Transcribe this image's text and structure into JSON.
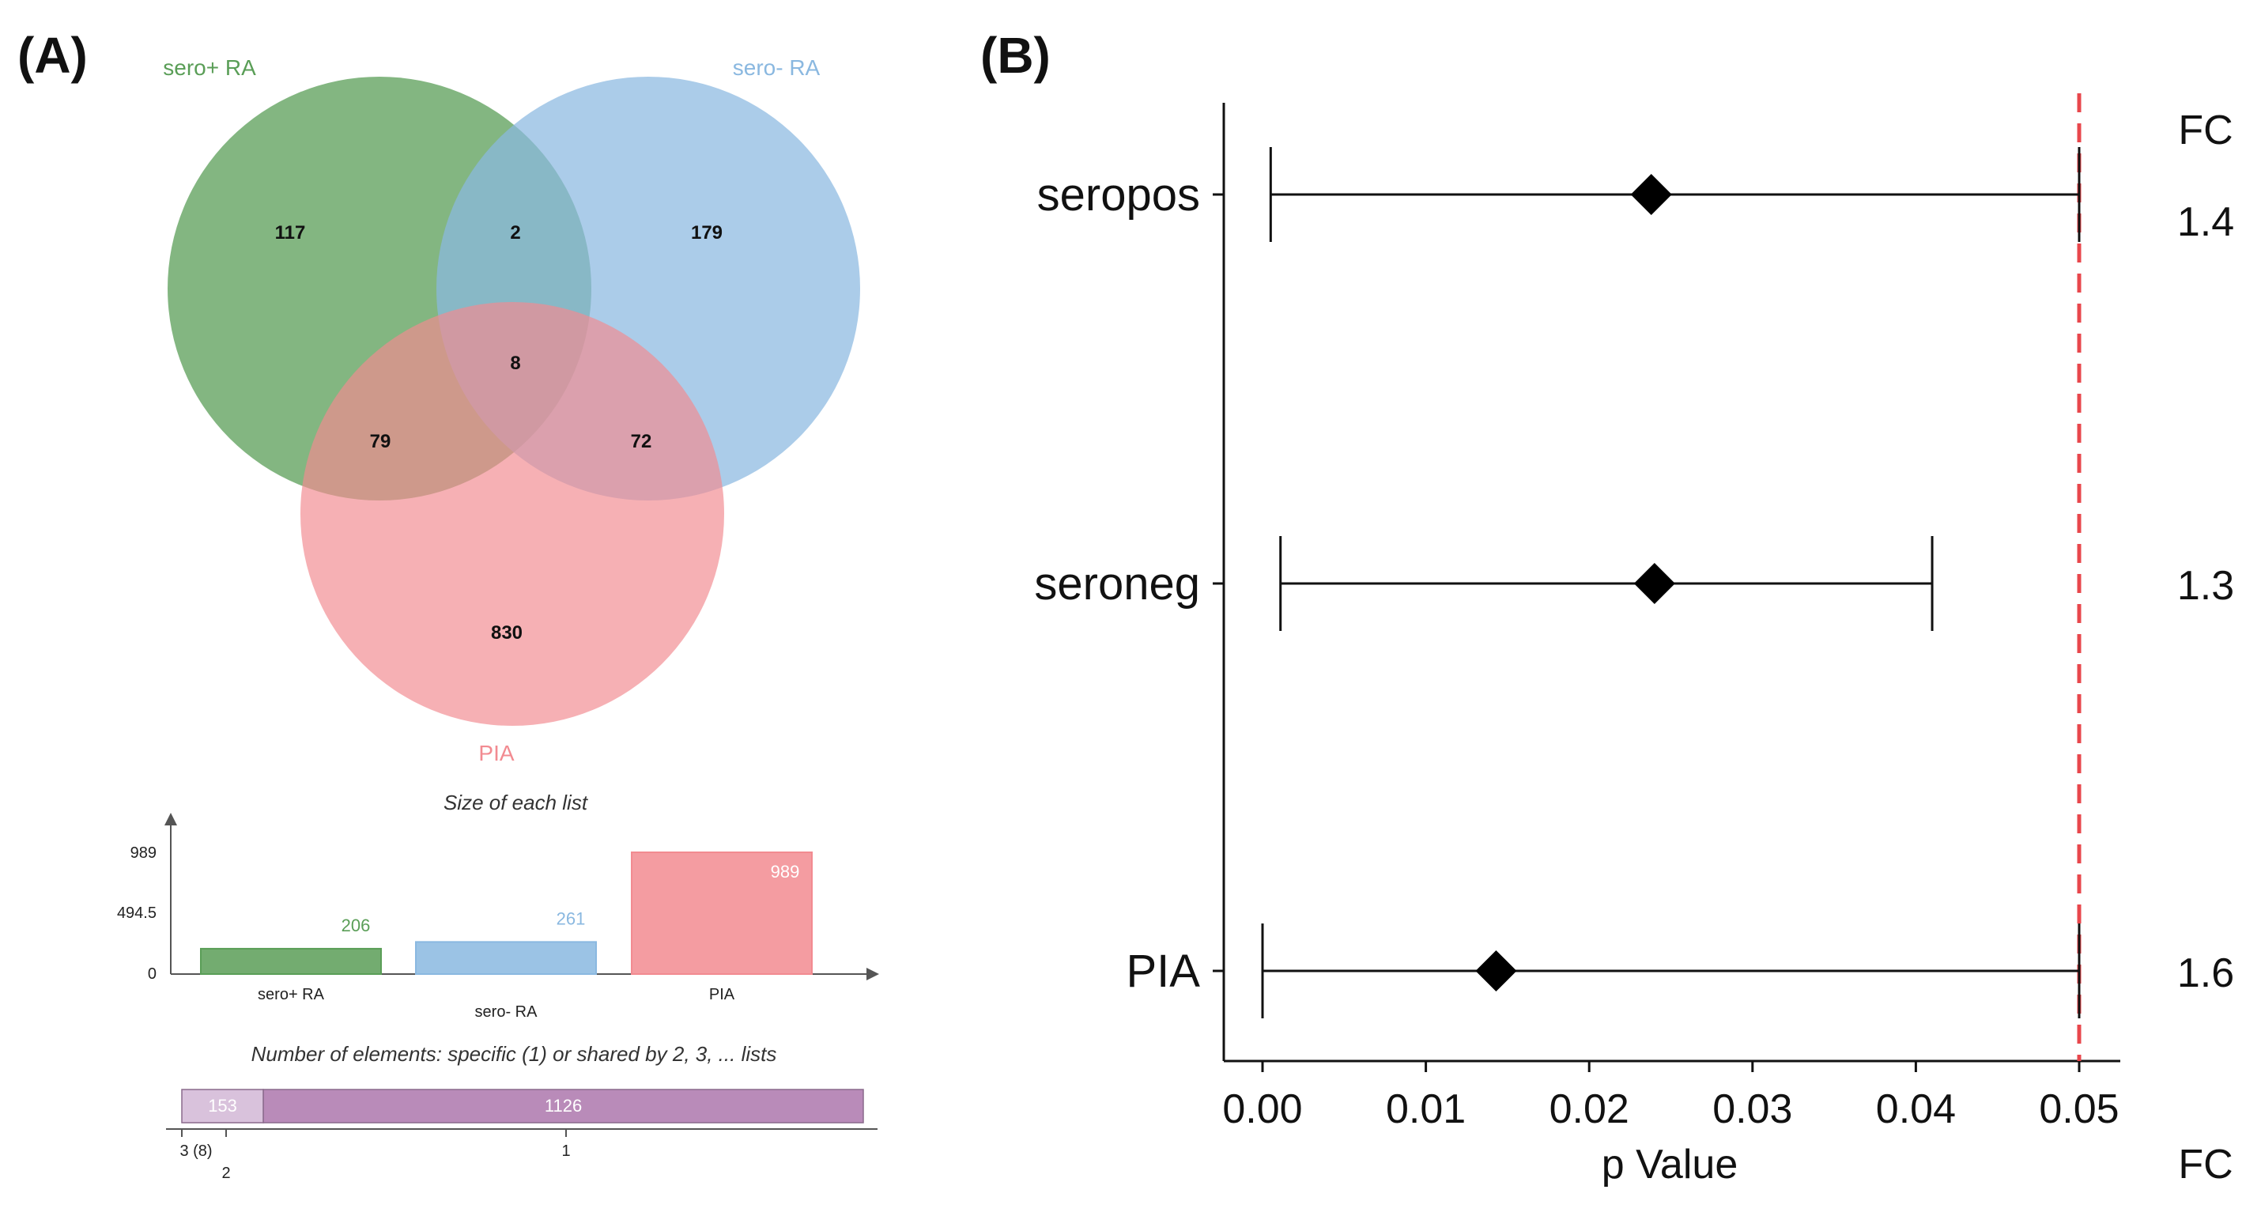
{
  "panels": {
    "a_label": "(A)",
    "b_label": "(B)"
  },
  "venn": {
    "sets": [
      {
        "key": "seropos",
        "label": "sero+ RA",
        "color": "#5a9e57"
      },
      {
        "key": "seroneg",
        "label": "sero- RA",
        "color": "#8ab8e0"
      },
      {
        "key": "pia",
        "label": "PIA",
        "color": "#f28b91"
      }
    ],
    "regions": {
      "seropos_only": "117",
      "seropos_seroneg": "2",
      "seroneg_only": "179",
      "all_three": "8",
      "seropos_pia": "79",
      "seroneg_pia": "72",
      "pia_only": "830"
    }
  },
  "list_sizes": {
    "title": "Size of each list",
    "yticks": [
      "989",
      "494.5",
      "0"
    ],
    "ymax": 989,
    "bars": [
      {
        "label": "sero+ RA",
        "value": 206,
        "value_label": "206",
        "color": "#5a9e57"
      },
      {
        "label": "sero- RA",
        "value": 261,
        "value_label": "261",
        "color": "#8ab8e0"
      },
      {
        "label": "PIA",
        "value": 989,
        "value_label": "989",
        "color": "#f28b91"
      }
    ]
  },
  "shared_counts": {
    "title": "Number of elements: specific (1) or shared by 2, 3, ... lists",
    "segments": [
      {
        "value": 153,
        "value_label": "153",
        "color": "#d9c2dc"
      },
      {
        "value": 1126,
        "value_label": "1126",
        "color": "#b98bb9"
      }
    ],
    "axis_labels": [
      "3 (8)",
      "2",
      "1"
    ]
  },
  "chart_data": {
    "type": "scatter",
    "subtype": "forest-plot",
    "xlabel": "p Value",
    "xlim": [
      0.0,
      0.05
    ],
    "xticks": [
      "0.00",
      "0.01",
      "0.02",
      "0.03",
      "0.04",
      "0.05"
    ],
    "reference_line": {
      "x": 0.05,
      "style": "dashed",
      "color": "#e8474c"
    },
    "fc_header": "FC",
    "fc_footer": "FC",
    "rows": [
      {
        "label": "seropos",
        "estimate": 0.0238,
        "lower": 0.0005,
        "upper": 0.05,
        "fc": "1.4"
      },
      {
        "label": "seroneg",
        "estimate": 0.024,
        "lower": 0.0011,
        "upper": 0.041,
        "fc": "1.3"
      },
      {
        "label": "PIA",
        "estimate": 0.0143,
        "lower": 0.0,
        "upper": 0.05,
        "fc": "1.6"
      }
    ],
    "grid": false
  }
}
